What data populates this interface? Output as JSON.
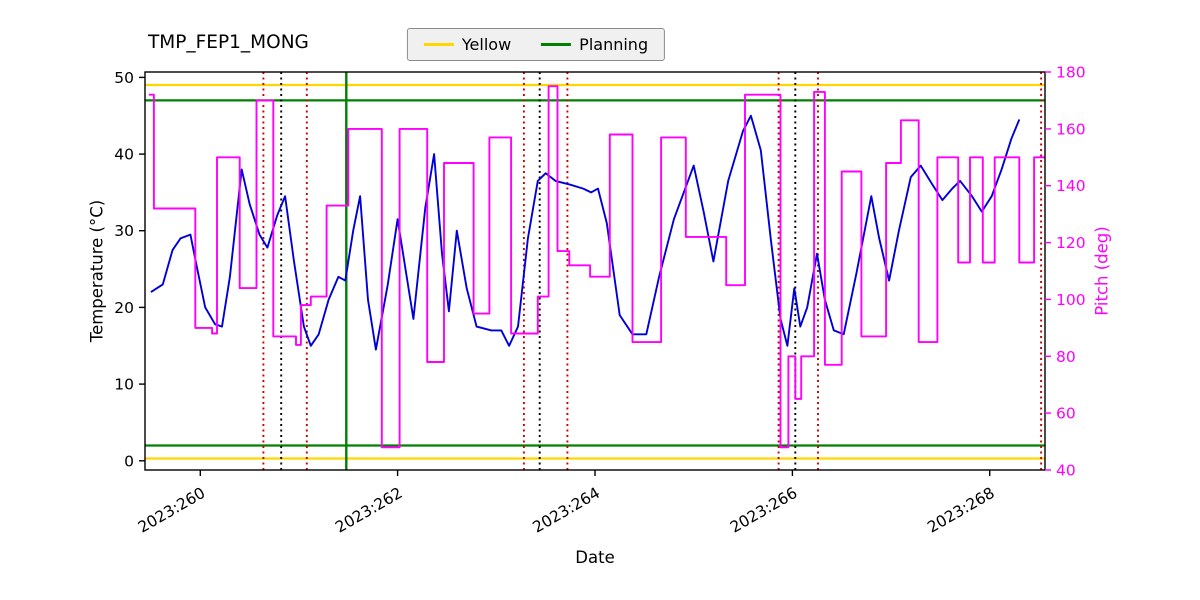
{
  "title": "TMP_FEP1_MONG",
  "legend": {
    "items": [
      {
        "label": "Yellow",
        "color": "#ffd700"
      },
      {
        "label": "Planning",
        "color": "#008000"
      }
    ]
  },
  "chart_data": {
    "type": "line",
    "title": "TMP_FEP1_MONG",
    "xlabel": "Date",
    "ylabel_left": "Temperature (°C)",
    "ylabel_right": "Pitch (deg)",
    "x_ticks": [
      260,
      262,
      264,
      266,
      268
    ],
    "x_tick_labels": [
      "2023:260",
      "2023:262",
      "2023:264",
      "2023:266",
      "2023:268"
    ],
    "xlim": [
      259.44,
      268.56
    ],
    "ylim_left": [
      -1.2,
      50.7
    ],
    "ylim_right": [
      40,
      180
    ],
    "y_ticks_left": [
      0,
      10,
      20,
      30,
      40,
      50
    ],
    "y_ticks_right": [
      40,
      60,
      80,
      100,
      120,
      140,
      160,
      180
    ],
    "colors": {
      "temperature": "#0000d8",
      "pitch": "#ff00ff",
      "yellow_limit": "#ffd700",
      "planning_limit": "#008000",
      "red_marker": "#cc0000",
      "black_marker": "#000000"
    },
    "limit_lines": [
      {
        "axis": "left",
        "value": 49,
        "color": "#ffd700",
        "name": "yellow-high"
      },
      {
        "axis": "left",
        "value": 0.3,
        "color": "#ffd700",
        "name": "yellow-low"
      },
      {
        "axis": "left",
        "value": 47,
        "color": "#008000",
        "name": "planning-high"
      },
      {
        "axis": "left",
        "value": 2,
        "color": "#008000",
        "name": "planning-low"
      }
    ],
    "vertical_lines": [
      {
        "x": 260.64,
        "color": "#cc0000",
        "style": "dotted"
      },
      {
        "x": 260.82,
        "color": "#000000",
        "style": "dotted"
      },
      {
        "x": 261.08,
        "color": "#cc0000",
        "style": "dotted"
      },
      {
        "x": 261.48,
        "color": "#008000",
        "style": "solid"
      },
      {
        "x": 263.28,
        "color": "#cc0000",
        "style": "dotted"
      },
      {
        "x": 263.44,
        "color": "#000000",
        "style": "dotted"
      },
      {
        "x": 263.72,
        "color": "#cc0000",
        "style": "dotted"
      },
      {
        "x": 265.86,
        "color": "#cc0000",
        "style": "dotted"
      },
      {
        "x": 266.03,
        "color": "#000000",
        "style": "dotted"
      },
      {
        "x": 266.26,
        "color": "#cc0000",
        "style": "dotted"
      },
      {
        "x": 268.52,
        "color": "#cc0000",
        "style": "dotted"
      }
    ],
    "series": [
      {
        "name": "Temperature",
        "axis": "left",
        "style": "line",
        "color": "#0000d8",
        "x": [
          259.5,
          259.62,
          259.72,
          259.8,
          259.9,
          259.97,
          260.05,
          260.15,
          260.22,
          260.3,
          260.42,
          260.5,
          260.6,
          260.68,
          260.78,
          260.86,
          260.95,
          261.05,
          261.12,
          261.2,
          261.3,
          261.4,
          261.47,
          261.55,
          261.62,
          261.7,
          261.78,
          261.9,
          262.0,
          262.08,
          262.16,
          262.28,
          262.37,
          262.45,
          262.52,
          262.6,
          262.7,
          262.8,
          262.95,
          263.05,
          263.13,
          263.22,
          263.32,
          263.42,
          263.5,
          263.6,
          263.75,
          263.88,
          263.96,
          264.03,
          264.12,
          264.25,
          264.38,
          264.52,
          264.65,
          264.8,
          265.0,
          265.1,
          265.2,
          265.35,
          265.5,
          265.58,
          265.68,
          265.78,
          265.88,
          265.95,
          266.02,
          266.08,
          266.15,
          266.25,
          266.33,
          266.42,
          266.52,
          266.65,
          266.8,
          266.88,
          266.98,
          267.08,
          267.2,
          267.3,
          267.42,
          267.52,
          267.62,
          267.7,
          267.82,
          267.92,
          268.02,
          268.12,
          268.22,
          268.3
        ],
        "y": [
          22,
          23,
          27.5,
          29,
          29.5,
          25,
          20,
          17.8,
          17.5,
          24,
          38,
          33.5,
          29.5,
          27.8,
          32,
          34.5,
          26,
          17.5,
          15,
          16.5,
          21,
          24,
          23.5,
          30,
          34.5,
          21,
          14.5,
          23,
          31.5,
          25,
          18.5,
          33,
          40,
          27,
          19.5,
          30,
          22.5,
          17.5,
          17,
          17,
          15,
          17.5,
          29,
          36.5,
          37.5,
          36.5,
          36,
          35.5,
          35,
          35.5,
          31,
          19,
          16.5,
          16.5,
          24,
          31.5,
          38.5,
          32.5,
          26,
          36.5,
          43,
          45,
          40.5,
          29,
          18.5,
          15,
          22.5,
          17.5,
          20,
          27,
          21,
          17,
          16.5,
          24.5,
          34.5,
          29,
          23.5,
          30,
          37,
          38.5,
          36,
          34,
          35.5,
          36.5,
          34.5,
          32.5,
          34.5,
          38,
          42,
          44.5
        ]
      },
      {
        "name": "Pitch",
        "axis": "right",
        "style": "step",
        "color": "#ff00ff",
        "x": [
          259.48,
          259.53,
          259.95,
          260.12,
          260.17,
          260.4,
          260.57,
          260.74,
          260.97,
          261.02,
          261.12,
          261.28,
          261.5,
          261.84,
          262.02,
          262.3,
          262.47,
          262.77,
          262.93,
          263.15,
          263.42,
          263.53,
          263.62,
          263.74,
          263.95,
          264.15,
          264.38,
          264.67,
          264.92,
          265.33,
          265.52,
          265.88,
          265.96,
          266.03,
          266.09,
          266.22,
          266.33,
          266.5,
          266.7,
          266.95,
          267.1,
          267.28,
          267.47,
          267.68,
          267.8,
          267.93,
          268.05,
          268.3,
          268.45
        ],
        "y": [
          172,
          132,
          90,
          88,
          150,
          104,
          170,
          87,
          84,
          98,
          101,
          133,
          160,
          48,
          160,
          78,
          148,
          95,
          157,
          88,
          101,
          175,
          117,
          112,
          108,
          158,
          85,
          157,
          122,
          105,
          172,
          48,
          80,
          65,
          80,
          173,
          77,
          145,
          87,
          148,
          163,
          85,
          150,
          113,
          150,
          113,
          150,
          113,
          150
        ]
      }
    ]
  }
}
